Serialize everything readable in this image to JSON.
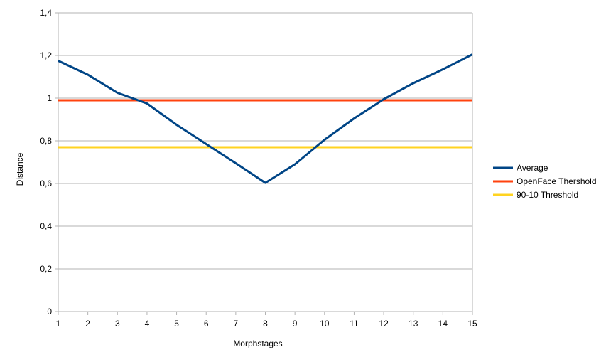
{
  "chart_data": {
    "type": "line",
    "title": "",
    "xlabel": "Morphstages",
    "ylabel": "Distance",
    "x": [
      1,
      2,
      3,
      4,
      5,
      6,
      7,
      8,
      9,
      10,
      11,
      12,
      13,
      14,
      15
    ],
    "xlim": [
      1,
      15
    ],
    "ylim": [
      0,
      1.4
    ],
    "yticks": [
      "0",
      "0,2",
      "0,4",
      "0,6",
      "0,8",
      "1",
      "1,2",
      "1,4"
    ],
    "ytick_values": [
      0,
      0.2,
      0.4,
      0.6,
      0.8,
      1.0,
      1.2,
      1.4
    ],
    "grid": true,
    "legend_position": "right",
    "series": [
      {
        "name": "Average",
        "color": "#004586",
        "values": [
          1.175,
          1.11,
          1.025,
          0.975,
          0.875,
          0.785,
          0.695,
          0.603,
          0.69,
          0.805,
          0.905,
          0.995,
          1.07,
          1.135,
          1.205
        ]
      },
      {
        "name": "OpenFace Thershold",
        "color": "#ff420e",
        "values": [
          0.99,
          0.99,
          0.99,
          0.99,
          0.99,
          0.99,
          0.99,
          0.99,
          0.99,
          0.99,
          0.99,
          0.99,
          0.99,
          0.99,
          0.99
        ]
      },
      {
        "name": "90-10 Threshold",
        "color": "#ffd320",
        "values": [
          0.77,
          0.77,
          0.77,
          0.77,
          0.77,
          0.77,
          0.77,
          0.77,
          0.77,
          0.77,
          0.77,
          0.77,
          0.77,
          0.77,
          0.77
        ]
      }
    ]
  }
}
